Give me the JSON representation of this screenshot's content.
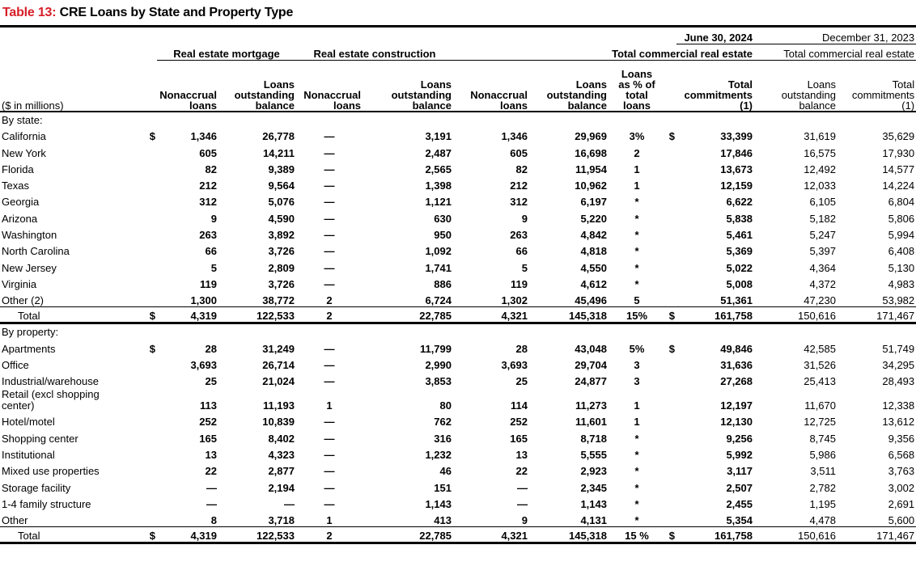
{
  "title": {
    "label": "Table 13:",
    "text": " CRE Loans by State and Property Type"
  },
  "period_current": "June 30, 2024",
  "period_prior": "December 31, 2023",
  "groups": {
    "mortgage": "Real estate mortgage",
    "construction": "Real estate construction",
    "total_cre": "Total commercial real estate",
    "total_cre_prior": "Total commercial real estate"
  },
  "col_headers": {
    "units": "($ in millions)",
    "nonaccrual": [
      "Nonaccrual",
      "loans"
    ],
    "loans_outstanding": [
      "Loans",
      "outstanding",
      "balance"
    ],
    "pct": [
      "Loans",
      "as % of",
      "total",
      "loans"
    ],
    "total_commitments": [
      "Total",
      "commitments",
      "(1)"
    ]
  },
  "by_state": {
    "label": "By state:",
    "rows": [
      {
        "name": "California",
        "d1": "$",
        "m_na": "1,346",
        "m_lo": "26,778",
        "c_na": "—",
        "c_lo": "3,191",
        "t_na": "1,346",
        "t_lo": "29,969",
        "pct": "3%",
        "d2": "$",
        "t_tc": "33,399",
        "p_lo": "31,619",
        "p_tc": "35,629"
      },
      {
        "name": "New York",
        "d1": "",
        "m_na": "605",
        "m_lo": "14,211",
        "c_na": "—",
        "c_lo": "2,487",
        "t_na": "605",
        "t_lo": "16,698",
        "pct": "2",
        "d2": "",
        "t_tc": "17,846",
        "p_lo": "16,575",
        "p_tc": "17,930"
      },
      {
        "name": "Florida",
        "d1": "",
        "m_na": "82",
        "m_lo": "9,389",
        "c_na": "—",
        "c_lo": "2,565",
        "t_na": "82",
        "t_lo": "11,954",
        "pct": "1",
        "d2": "",
        "t_tc": "13,673",
        "p_lo": "12,492",
        "p_tc": "14,577"
      },
      {
        "name": "Texas",
        "d1": "",
        "m_na": "212",
        "m_lo": "9,564",
        "c_na": "—",
        "c_lo": "1,398",
        "t_na": "212",
        "t_lo": "10,962",
        "pct": "1",
        "d2": "",
        "t_tc": "12,159",
        "p_lo": "12,033",
        "p_tc": "14,224"
      },
      {
        "name": "Georgia",
        "d1": "",
        "m_na": "312",
        "m_lo": "5,076",
        "c_na": "—",
        "c_lo": "1,121",
        "t_na": "312",
        "t_lo": "6,197",
        "pct": "*",
        "d2": "",
        "t_tc": "6,622",
        "p_lo": "6,105",
        "p_tc": "6,804"
      },
      {
        "name": "Arizona",
        "d1": "",
        "m_na": "9",
        "m_lo": "4,590",
        "c_na": "—",
        "c_lo": "630",
        "t_na": "9",
        "t_lo": "5,220",
        "pct": "*",
        "d2": "",
        "t_tc": "5,838",
        "p_lo": "5,182",
        "p_tc": "5,806"
      },
      {
        "name": "Washington",
        "d1": "",
        "m_na": "263",
        "m_lo": "3,892",
        "c_na": "—",
        "c_lo": "950",
        "t_na": "263",
        "t_lo": "4,842",
        "pct": "*",
        "d2": "",
        "t_tc": "5,461",
        "p_lo": "5,247",
        "p_tc": "5,994"
      },
      {
        "name": "North Carolina",
        "d1": "",
        "m_na": "66",
        "m_lo": "3,726",
        "c_na": "—",
        "c_lo": "1,092",
        "t_na": "66",
        "t_lo": "4,818",
        "pct": "*",
        "d2": "",
        "t_tc": "5,369",
        "p_lo": "5,397",
        "p_tc": "6,408"
      },
      {
        "name": "New Jersey",
        "d1": "",
        "m_na": "5",
        "m_lo": "2,809",
        "c_na": "—",
        "c_lo": "1,741",
        "t_na": "5",
        "t_lo": "4,550",
        "pct": "*",
        "d2": "",
        "t_tc": "5,022",
        "p_lo": "4,364",
        "p_tc": "5,130"
      },
      {
        "name": "Virginia",
        "d1": "",
        "m_na": "119",
        "m_lo": "3,726",
        "c_na": "—",
        "c_lo": "886",
        "t_na": "119",
        "t_lo": "4,612",
        "pct": "*",
        "d2": "",
        "t_tc": "5,008",
        "p_lo": "4,372",
        "p_tc": "4,983"
      },
      {
        "name": "Other (2)",
        "d1": "",
        "m_na": "1,300",
        "m_lo": "38,772",
        "c_na": "2",
        "c_lo": "6,724",
        "t_na": "1,302",
        "t_lo": "45,496",
        "pct": "5",
        "d2": "",
        "t_tc": "51,361",
        "p_lo": "47,230",
        "p_tc": "53,982"
      }
    ],
    "total": {
      "name": "Total",
      "d1": "$",
      "m_na": "4,319",
      "m_lo": "122,533",
      "c_na": "2",
      "c_lo": "22,785",
      "t_na": "4,321",
      "t_lo": "145,318",
      "pct": "15%",
      "d2": "$",
      "t_tc": "161,758",
      "p_lo": "150,616",
      "p_tc": "171,467"
    }
  },
  "by_property": {
    "label": "By property:",
    "rows": [
      {
        "name": "Apartments",
        "d1": "$",
        "m_na": "28",
        "m_lo": "31,249",
        "c_na": "—",
        "c_lo": "11,799",
        "t_na": "28",
        "t_lo": "43,048",
        "pct": "5%",
        "d2": "$",
        "t_tc": "49,846",
        "p_lo": "42,585",
        "p_tc": "51,749"
      },
      {
        "name": "Office",
        "d1": "",
        "m_na": "3,693",
        "m_lo": "26,714",
        "c_na": "—",
        "c_lo": "2,990",
        "t_na": "3,693",
        "t_lo": "29,704",
        "pct": "3",
        "d2": "",
        "t_tc": "31,636",
        "p_lo": "31,526",
        "p_tc": "34,295"
      },
      {
        "name": "Industrial/warehouse",
        "d1": "",
        "m_na": "25",
        "m_lo": "21,024",
        "c_na": "—",
        "c_lo": "3,853",
        "t_na": "25",
        "t_lo": "24,877",
        "pct": "3",
        "d2": "",
        "t_tc": "27,268",
        "p_lo": "25,413",
        "p_tc": "28,493"
      },
      {
        "name": "Retail (excl shopping center)",
        "name_l1": "Retail (excl shopping",
        "name_l2": "center)",
        "d1": "",
        "m_na": "113",
        "m_lo": "11,193",
        "c_na": "1",
        "c_lo": "80",
        "t_na": "114",
        "t_lo": "11,273",
        "pct": "1",
        "d2": "",
        "t_tc": "12,197",
        "p_lo": "11,670",
        "p_tc": "12,338"
      },
      {
        "name": "Hotel/motel",
        "d1": "",
        "m_na": "252",
        "m_lo": "10,839",
        "c_na": "—",
        "c_lo": "762",
        "t_na": "252",
        "t_lo": "11,601",
        "pct": "1",
        "d2": "",
        "t_tc": "12,130",
        "p_lo": "12,725",
        "p_tc": "13,612"
      },
      {
        "name": "Shopping center",
        "d1": "",
        "m_na": "165",
        "m_lo": "8,402",
        "c_na": "—",
        "c_lo": "316",
        "t_na": "165",
        "t_lo": "8,718",
        "pct": "*",
        "d2": "",
        "t_tc": "9,256",
        "p_lo": "8,745",
        "p_tc": "9,356"
      },
      {
        "name": "Institutional",
        "d1": "",
        "m_na": "13",
        "m_lo": "4,323",
        "c_na": "—",
        "c_lo": "1,232",
        "t_na": "13",
        "t_lo": "5,555",
        "pct": "*",
        "d2": "",
        "t_tc": "5,992",
        "p_lo": "5,986",
        "p_tc": "6,568"
      },
      {
        "name": "Mixed use properties",
        "d1": "",
        "m_na": "22",
        "m_lo": "2,877",
        "c_na": "—",
        "c_lo": "46",
        "t_na": "22",
        "t_lo": "2,923",
        "pct": "*",
        "d2": "",
        "t_tc": "3,117",
        "p_lo": "3,511",
        "p_tc": "3,763"
      },
      {
        "name": "Storage facility",
        "d1": "",
        "m_na": "—",
        "m_lo": "2,194",
        "c_na": "—",
        "c_lo": "151",
        "t_na": "—",
        "t_lo": "2,345",
        "pct": "*",
        "d2": "",
        "t_tc": "2,507",
        "p_lo": "2,782",
        "p_tc": "3,002"
      },
      {
        "name": "1-4 family structure",
        "d1": "",
        "m_na": "—",
        "m_lo": "—",
        "c_na": "—",
        "c_lo": "1,143",
        "t_na": "—",
        "t_lo": "1,143",
        "pct": "*",
        "d2": "",
        "t_tc": "2,455",
        "p_lo": "1,195",
        "p_tc": "2,691"
      },
      {
        "name": "Other",
        "d1": "",
        "m_na": "8",
        "m_lo": "3,718",
        "c_na": "1",
        "c_lo": "413",
        "t_na": "9",
        "t_lo": "4,131",
        "pct": "*",
        "d2": "",
        "t_tc": "5,354",
        "p_lo": "4,478",
        "p_tc": "5,600"
      }
    ],
    "total": {
      "name": "Total",
      "d1": "$",
      "m_na": "4,319",
      "m_lo": "122,533",
      "c_na": "2",
      "c_lo": "22,785",
      "t_na": "4,321",
      "t_lo": "145,318",
      "pct": "15 %",
      "d2": "$",
      "t_tc": "161,758",
      "p_lo": "150,616",
      "p_tc": "171,467"
    }
  }
}
